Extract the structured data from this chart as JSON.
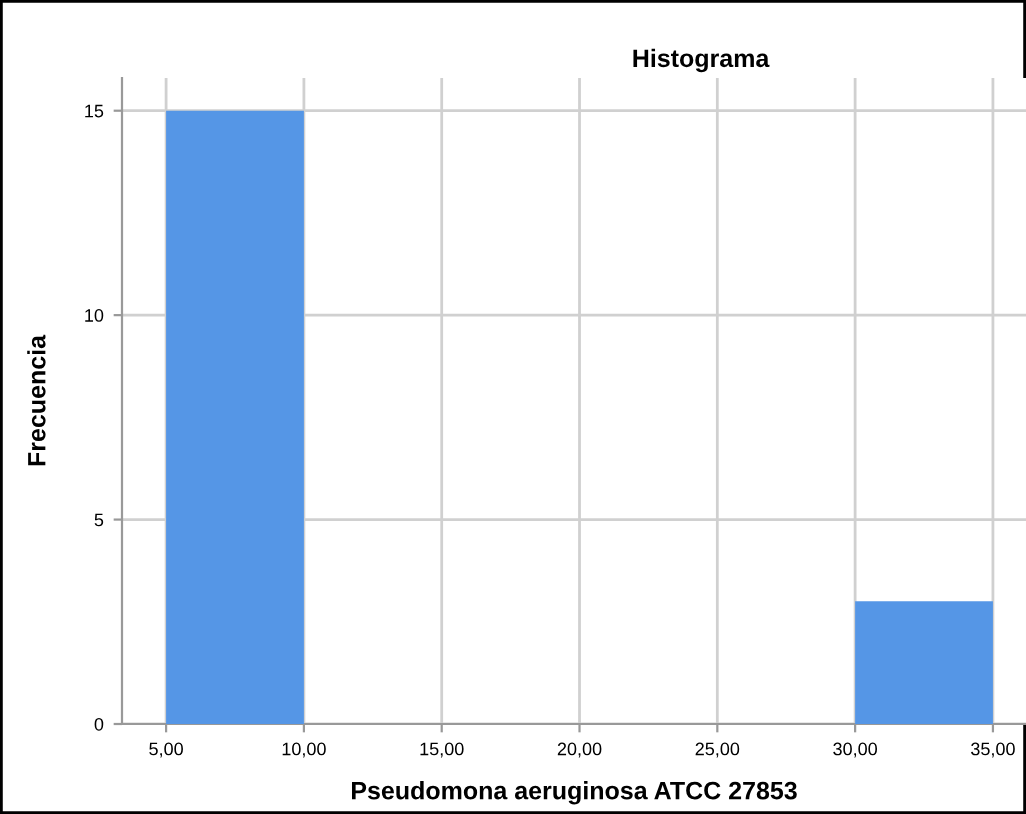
{
  "chart_data": {
    "type": "histogram",
    "title": "Histograma",
    "xlabel": "Pseudomona aeruginosa ATCC 27853",
    "ylabel": "Frecuencia",
    "bins": [
      5,
      10,
      15,
      20,
      25,
      30,
      35
    ],
    "values": [
      15,
      0,
      0,
      0,
      0,
      3
    ],
    "color": "#5596e6",
    "xlim": [
      3.4,
      36.2
    ],
    "ylim": [
      0,
      15.8
    ],
    "xticks": [
      {
        "value": 5,
        "label": "5,00"
      },
      {
        "value": 10,
        "label": "10,00"
      },
      {
        "value": 15,
        "label": "15,00"
      },
      {
        "value": 20,
        "label": "20,00"
      },
      {
        "value": 25,
        "label": "25,00"
      },
      {
        "value": 30,
        "label": "30,00"
      },
      {
        "value": 35,
        "label": "35,00"
      }
    ],
    "yticks": [
      0,
      5,
      10,
      15
    ],
    "grid": true,
    "legend": false
  }
}
